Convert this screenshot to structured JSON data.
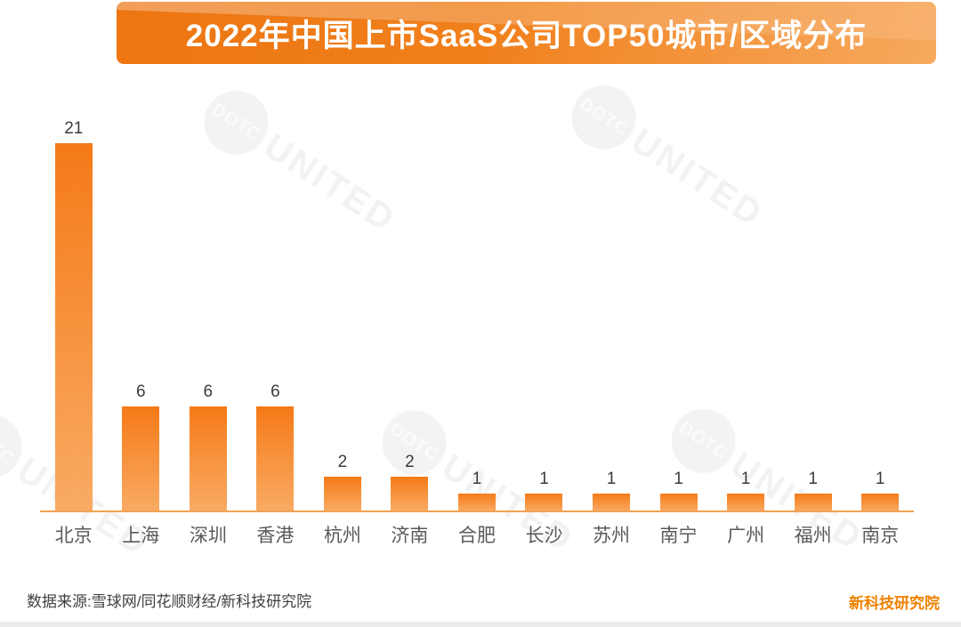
{
  "banner": {
    "title": "2022年中国上市SaaS公司TOP50城市/区域分布"
  },
  "chart_data": {
    "type": "bar",
    "title": "2022年中国上市SaaS公司TOP50城市/区域分布",
    "categories": [
      "北京",
      "上海",
      "深圳",
      "香港",
      "杭州",
      "济南",
      "合肥",
      "长沙",
      "苏州",
      "南宁",
      "广州",
      "福州",
      "南京"
    ],
    "values": [
      21,
      6,
      6,
      6,
      2,
      2,
      1,
      1,
      1,
      1,
      1,
      1,
      1
    ],
    "xlabel": "",
    "ylabel": "",
    "ylim": [
      0,
      22
    ],
    "grid": false,
    "legend": false,
    "data_labels": true,
    "bar_color_top": "#f57a18",
    "bar_color_bottom": "#f9ab64",
    "axis_color": "#f0a356"
  },
  "watermark": {
    "circle_text": "DOTC",
    "main_text": "UNITED"
  },
  "footer": {
    "source": "数据来源:雪球网/同花顺财经/新科技研究院",
    "brand": "新科技研究院"
  },
  "colors": {
    "banner_gradient_start": "#ed7512",
    "banner_gradient_end": "#f7a95e",
    "title_text": "#ffffff",
    "value_label": "#3c3c3c",
    "category_label": "#5a5a5a",
    "brand_text": "#ef8200"
  }
}
